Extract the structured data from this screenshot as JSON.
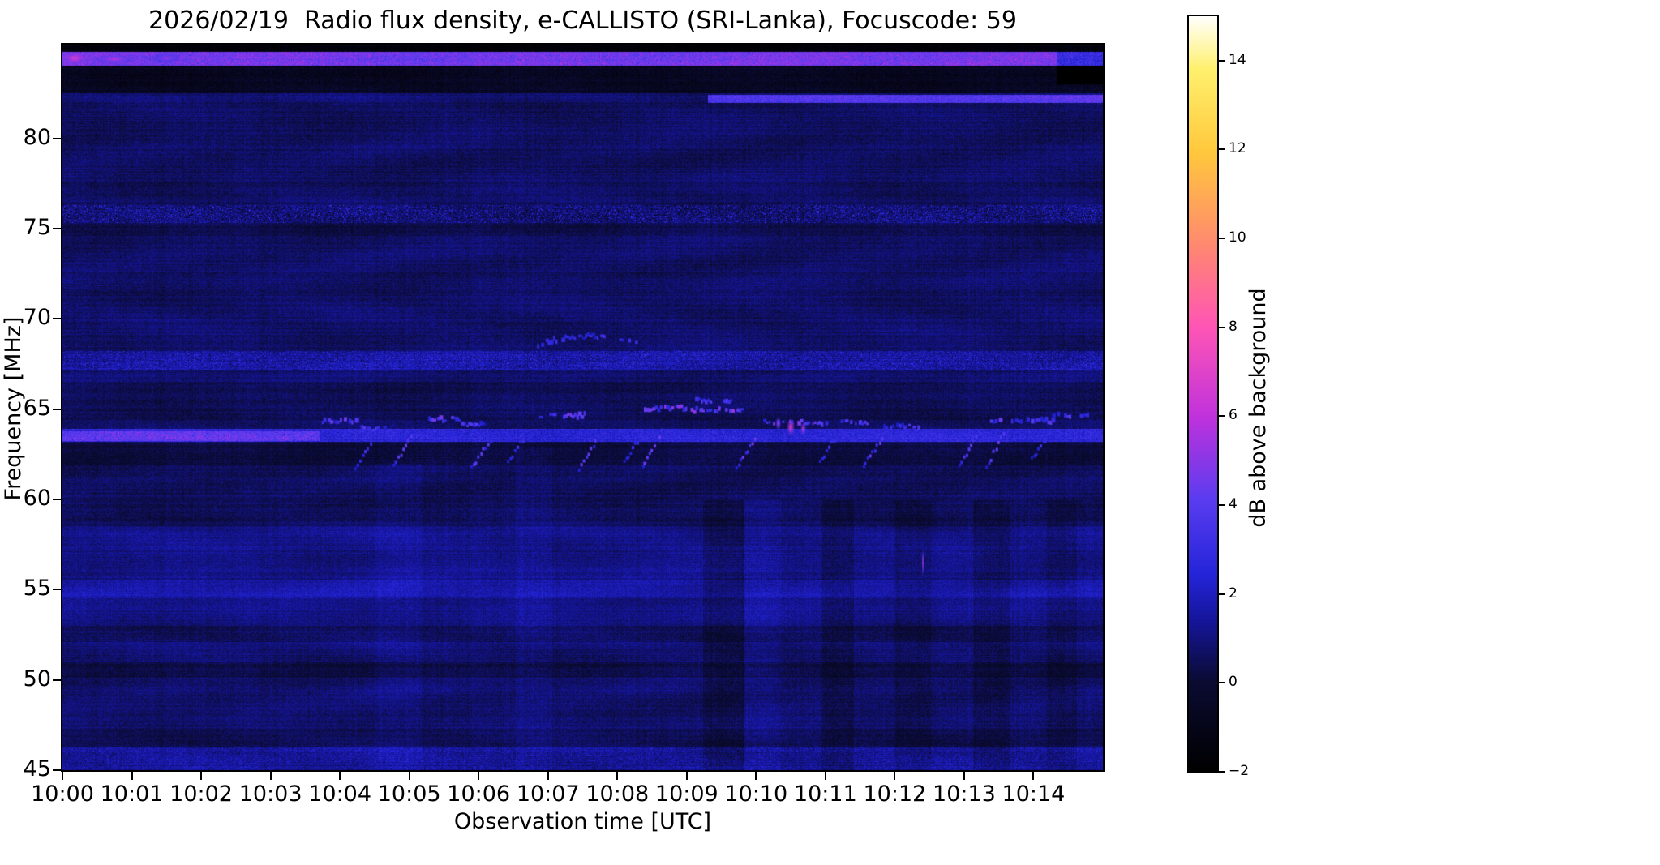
{
  "chart_data": {
    "type": "heatmap",
    "title": "2026/02/19  Radio flux density, e-CALLISTO (SRI-Lanka), Focuscode: 59",
    "xlabel": "Observation time [UTC]",
    "ylabel": "Frequency [MHz]",
    "x_tick_labels": [
      "10:00",
      "10:01",
      "10:02",
      "10:03",
      "10:04",
      "10:05",
      "10:06",
      "10:07",
      "10:08",
      "10:09",
      "10:10",
      "10:11",
      "10:12",
      "10:13",
      "10:14"
    ],
    "x_axis_span_minutes": 15,
    "y_ticks": [
      45,
      50,
      55,
      60,
      65,
      70,
      75,
      80
    ],
    "y_range": [
      45,
      85.2
    ],
    "colorbar": {
      "label": "dB above background",
      "range": [
        -2,
        15
      ],
      "ticks": [
        {
          "v": -2,
          "label": "−2"
        },
        {
          "v": 0,
          "label": "0"
        },
        {
          "v": 2,
          "label": "2"
        },
        {
          "v": 4,
          "label": "4"
        },
        {
          "v": 6,
          "label": "6"
        },
        {
          "v": 8,
          "label": "8"
        },
        {
          "v": 10,
          "label": "10"
        },
        {
          "v": 12,
          "label": "12"
        },
        {
          "v": 14,
          "label": "14"
        }
      ]
    },
    "colormap_stops": [
      [
        0.0,
        "#000000"
      ],
      [
        0.12,
        "#0b0b33"
      ],
      [
        0.2,
        "#15159b"
      ],
      [
        0.26,
        "#2424d8"
      ],
      [
        0.36,
        "#5a3cf0"
      ],
      [
        0.47,
        "#c032dc"
      ],
      [
        0.59,
        "#ff55b4"
      ],
      [
        0.7,
        "#ff8a6e"
      ],
      [
        0.82,
        "#ffc83c"
      ],
      [
        0.93,
        "#fff06e"
      ],
      [
        1.0,
        "#ffffff"
      ]
    ],
    "background_level_db": 0.8,
    "noise_db": 0.5,
    "bands": [
      {
        "f0": 84.8,
        "f1": 85.25,
        "dv": -2.4
      },
      {
        "f0": 84.05,
        "f1": 84.8,
        "dv": 3.8,
        "speckle": 1.3
      },
      {
        "f0": 82.5,
        "f1": 84.05,
        "dv": -1.5,
        "speckle": 0.6
      },
      {
        "f0": 82.0,
        "f1": 82.45,
        "dv": 3.0,
        "speckle": 0.8,
        "t0": 0.62,
        "t1": 1.0
      },
      {
        "f0": 83.0,
        "f1": 84.8,
        "dv": -1.6,
        "t0": 0.955,
        "t1": 1.0
      },
      {
        "f0": 76.3,
        "f1": 82.0,
        "dv": -0.15
      },
      {
        "f0": 75.3,
        "f1": 76.3,
        "dv": 0.1,
        "speckle": 2.4
      },
      {
        "f0": 74.6,
        "f1": 75.3,
        "dv": -0.45
      },
      {
        "f0": 68.2,
        "f1": 74.6,
        "dv": -0.1
      },
      {
        "f0": 67.2,
        "f1": 68.2,
        "dv": 0.8,
        "speckle": 1.6
      },
      {
        "f0": 64.1,
        "f1": 66.5,
        "dv": -0.3
      },
      {
        "f0": 63.2,
        "f1": 63.9,
        "dv": 1.8,
        "speckle": 0.9
      },
      {
        "f0": 63.25,
        "f1": 63.8,
        "dv": 1.5,
        "speckle": 1.4,
        "t0": 0.0,
        "t1": 0.247
      },
      {
        "f0": 61.9,
        "f1": 63.15,
        "dv": -0.7
      },
      {
        "f0": 58.5,
        "f1": 61.9,
        "dv": -0.25
      },
      {
        "f0": 52.0,
        "f1": 58.5,
        "dv": 0.35
      },
      {
        "f0": 54.5,
        "f1": 55.5,
        "dv": 0.5
      },
      {
        "f0": 52.1,
        "f1": 53.0,
        "dv": -0.55
      },
      {
        "f0": 50.1,
        "f1": 51.0,
        "dv": -0.5
      },
      {
        "f0": 46.3,
        "f1": 47.3,
        "dv": -0.3
      },
      {
        "f0": 45.0,
        "f1": 46.3,
        "dv": 0.5,
        "speckle": 0.9
      }
    ],
    "columns": [
      {
        "t0": 0.3,
        "t1": 0.345,
        "f0": 45,
        "f1": 62,
        "dv": 0.3
      },
      {
        "t0": 0.435,
        "t1": 0.47,
        "f0": 45,
        "f1": 63,
        "dv": 0.25
      },
      {
        "t0": 0.615,
        "t1": 0.655,
        "f0": 45,
        "f1": 60,
        "dv": -0.5
      },
      {
        "t0": 0.655,
        "t1": 0.69,
        "f0": 45,
        "f1": 60,
        "dv": 0.3
      },
      {
        "t0": 0.73,
        "t1": 0.76,
        "f0": 45,
        "f1": 60,
        "dv": -0.45
      },
      {
        "t0": 0.8,
        "t1": 0.835,
        "f0": 45,
        "f1": 60,
        "dv": -0.35
      },
      {
        "t0": 0.875,
        "t1": 0.91,
        "f0": 45,
        "f1": 60,
        "dv": -0.4
      },
      {
        "t0": 0.945,
        "t1": 0.975,
        "f0": 45,
        "f1": 60,
        "dv": -0.35
      }
    ],
    "bursts": [
      {
        "t0": 0.25,
        "t1": 0.285,
        "f": 64.3,
        "dv": 2.8
      },
      {
        "t0": 0.288,
        "t1": 0.31,
        "f": 63.9,
        "dv": 2.2
      },
      {
        "t0": 0.353,
        "t1": 0.385,
        "f": 64.4,
        "dv": 2.6
      },
      {
        "t0": 0.385,
        "t1": 0.405,
        "f": 64.1,
        "dv": 2.2
      },
      {
        "t0": 0.46,
        "t1": 0.505,
        "f": 64.6,
        "dv": 2.8
      },
      {
        "t0": 0.455,
        "t1": 0.555,
        "f": 68.5,
        "dv": 2.0,
        "arc": 0.5
      },
      {
        "t0": 0.56,
        "t1": 0.6,
        "f": 65.0,
        "dv": 3.0
      },
      {
        "t0": 0.603,
        "t1": 0.66,
        "f": 64.9,
        "dv": 3.2
      },
      {
        "t0": 0.61,
        "t1": 0.645,
        "f": 65.4,
        "dv": 2.2
      },
      {
        "t0": 0.673,
        "t1": 0.735,
        "f": 64.2,
        "dv": 3.0
      },
      {
        "t0": 0.745,
        "t1": 0.775,
        "f": 64.2,
        "dv": 2.4
      },
      {
        "t0": 0.79,
        "t1": 0.825,
        "f": 64.0,
        "dv": 2.2
      },
      {
        "t0": 0.893,
        "t1": 0.953,
        "f": 64.3,
        "dv": 2.6
      },
      {
        "t0": 0.953,
        "t1": 0.987,
        "f": 64.6,
        "dv": 2.2
      }
    ],
    "drifts": [
      {
        "t0": 0.282,
        "f0": 61.6,
        "t1": 0.296,
        "f1": 63.1,
        "dv": 2.4
      },
      {
        "t0": 0.318,
        "f0": 61.9,
        "t1": 0.335,
        "f1": 63.4,
        "dv": 2.6
      },
      {
        "t0": 0.393,
        "f0": 61.7,
        "t1": 0.412,
        "f1": 63.3,
        "dv": 2.8
      },
      {
        "t0": 0.428,
        "f0": 62.0,
        "t1": 0.443,
        "f1": 63.3,
        "dv": 2.4
      },
      {
        "t0": 0.497,
        "f0": 61.6,
        "t1": 0.515,
        "f1": 63.5,
        "dv": 2.8
      },
      {
        "t0": 0.54,
        "f0": 62.0,
        "t1": 0.553,
        "f1": 63.2,
        "dv": 2.2
      },
      {
        "t0": 0.558,
        "f0": 61.8,
        "t1": 0.576,
        "f1": 63.8,
        "dv": 3.0
      },
      {
        "t0": 0.648,
        "f0": 61.7,
        "t1": 0.668,
        "f1": 63.6,
        "dv": 2.8
      },
      {
        "t0": 0.728,
        "f0": 62.0,
        "t1": 0.742,
        "f1": 63.3,
        "dv": 2.4
      },
      {
        "t0": 0.77,
        "f0": 61.8,
        "t1": 0.79,
        "f1": 63.6,
        "dv": 2.6
      },
      {
        "t0": 0.862,
        "f0": 61.9,
        "t1": 0.878,
        "f1": 63.4,
        "dv": 2.4
      },
      {
        "t0": 0.888,
        "f0": 61.7,
        "t1": 0.905,
        "f1": 63.7,
        "dv": 2.6
      },
      {
        "t0": 0.932,
        "f0": 62.2,
        "t1": 0.945,
        "f1": 63.3,
        "dv": 2.2
      }
    ],
    "hotspots": [
      {
        "t": 0.012,
        "f": 84.45,
        "dv": 6.2,
        "rt": 0.012,
        "rf": 0.35
      },
      {
        "t": 0.05,
        "f": 84.4,
        "dv": 5.2,
        "rt": 0.02,
        "rf": 0.3
      },
      {
        "t": 0.1,
        "f": 84.45,
        "dv": 4.6,
        "rt": 0.015,
        "rf": 0.3
      },
      {
        "t": 0.688,
        "f": 64.2,
        "dv": 5.0,
        "rt": 0.003,
        "rf": 0.4
      },
      {
        "t": 0.7,
        "f": 64.0,
        "dv": 6.5,
        "rt": 0.004,
        "rf": 0.5
      },
      {
        "t": 0.712,
        "f": 63.9,
        "dv": 5.5,
        "rt": 0.003,
        "rf": 0.4
      },
      {
        "t": 0.827,
        "f": 56.5,
        "dv": 5.5,
        "rt": 0.0012,
        "rf": 0.8
      }
    ]
  }
}
